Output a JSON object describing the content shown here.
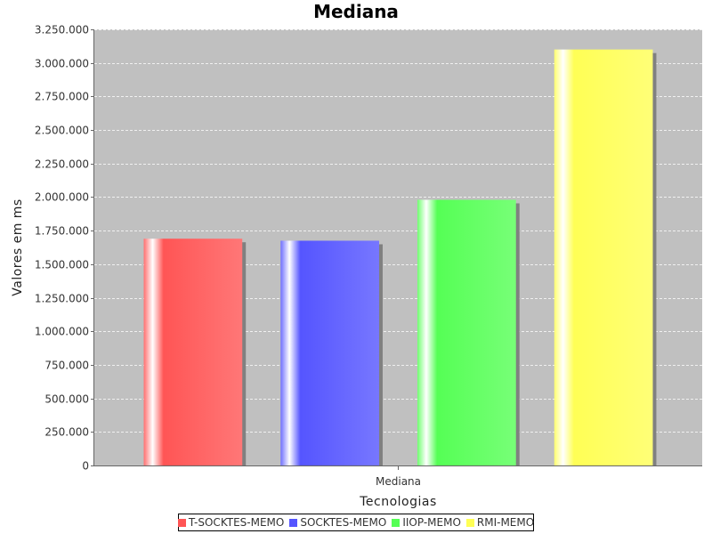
{
  "chart_data": {
    "type": "bar",
    "title": "Mediana",
    "xlabel": "Tecnologias",
    "ylabel": "Valores em ms",
    "categories": [
      "Mediana"
    ],
    "series": [
      {
        "name": "T-SOCKTES-MEMO",
        "values": [
          1690000
        ],
        "color": "#ff5555"
      },
      {
        "name": "SOCKTES-MEMO",
        "values": [
          1675000
        ],
        "color": "#5555ff"
      },
      {
        "name": "IIOP-MEMO",
        "values": [
          1980000
        ],
        "color": "#55ff55"
      },
      {
        "name": "RMI-MEMO",
        "values": [
          3100000
        ],
        "color": "#ffff55"
      }
    ],
    "ylim": [
      0,
      3250000
    ],
    "yticks": [
      0,
      250000,
      500000,
      750000,
      1000000,
      1250000,
      1500000,
      1750000,
      2000000,
      2250000,
      2500000,
      2750000,
      3000000,
      3250000
    ],
    "ytick_labels": [
      "0",
      "250.000",
      "500.000",
      "750.000",
      "1.000.000",
      "1.250.000",
      "1.500.000",
      "1.750.000",
      "2.000.000",
      "2.250.000",
      "2.500.000",
      "2.750.000",
      "3.000.000",
      "3.250.000"
    ],
    "grid": true,
    "legend_position": "bottom",
    "plot_background": "#c0c0c0"
  }
}
